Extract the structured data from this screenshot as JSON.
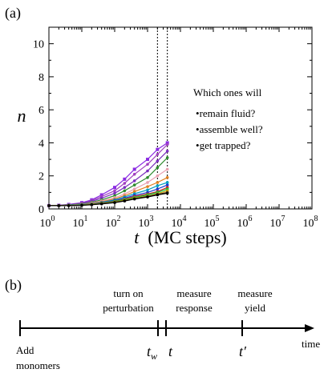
{
  "panel_a_label": "(a)",
  "panel_b_label": "(b)",
  "annotation": {
    "heading": "Which ones will",
    "bullets": [
      "remain fluid?",
      "assemble well?",
      "get trapped?"
    ]
  },
  "timeline": {
    "events": [
      {
        "id": "add",
        "below": [
          "Add",
          "monomers"
        ]
      },
      {
        "id": "tw",
        "above": [
          "turn on",
          "perturbation"
        ],
        "symbol": "t_w"
      },
      {
        "id": "t",
        "above": [
          "measure",
          "response"
        ],
        "symbol": "t"
      },
      {
        "id": "tp",
        "above": [
          "measure",
          "yield"
        ],
        "symbol": "t′"
      }
    ],
    "axis_label": "time"
  },
  "chart_data": {
    "type": "line",
    "xlabel": "t  (MC steps)",
    "ylabel": "n",
    "xscale": "log",
    "xlim": [
      1,
      100000000
    ],
    "ylim": [
      0,
      11
    ],
    "yticks": [
      0,
      2,
      4,
      6,
      8,
      10
    ],
    "xtick_labels": [
      "10^0",
      "10^1",
      "10^2",
      "10^3",
      "10^4",
      "10^5",
      "10^6",
      "10^7",
      "10^8"
    ],
    "vlines": [
      2000,
      4000
    ],
    "grid": false,
    "x": [
      1,
      2,
      4,
      10,
      20,
      40,
      100,
      200,
      400,
      1000,
      2000,
      4000
    ],
    "series": [
      {
        "color": "#8a2be2",
        "marker": "square",
        "values": [
          0.2,
          0.22,
          0.27,
          0.38,
          0.55,
          0.85,
          1.3,
          1.8,
          2.4,
          3.0,
          3.6,
          4.0
        ]
      },
      {
        "color": "#a040c0",
        "marker": "circle",
        "values": [
          0.2,
          0.22,
          0.26,
          0.35,
          0.5,
          0.75,
          1.1,
          1.55,
          2.1,
          2.7,
          3.3,
          3.9
        ]
      },
      {
        "color": "#7b2fbe",
        "marker": "circle",
        "values": [
          0.2,
          0.21,
          0.25,
          0.33,
          0.45,
          0.65,
          0.95,
          1.3,
          1.7,
          2.3,
          2.9,
          3.5
        ]
      },
      {
        "color": "#2e8b2e",
        "marker": "circle",
        "values": [
          0.2,
          0.21,
          0.24,
          0.3,
          0.4,
          0.55,
          0.8,
          1.1,
          1.45,
          1.9,
          2.5,
          3.1
        ]
      },
      {
        "color": "#e8a0b0",
        "marker": "circle",
        "values": [
          0.2,
          0.21,
          0.23,
          0.28,
          0.36,
          0.48,
          0.68,
          0.9,
          1.2,
          1.6,
          2.0,
          2.4
        ]
      },
      {
        "color": "#e08020",
        "marker": "circle",
        "values": [
          0.2,
          0.2,
          0.22,
          0.27,
          0.33,
          0.43,
          0.6,
          0.8,
          1.05,
          1.35,
          1.6,
          1.9
        ]
      },
      {
        "color": "#00a0c0",
        "marker": "circle",
        "values": [
          0.2,
          0.2,
          0.22,
          0.26,
          0.31,
          0.4,
          0.55,
          0.72,
          0.92,
          1.15,
          1.4,
          1.6
        ]
      },
      {
        "color": "#1a3ad0",
        "marker": "circle",
        "values": [
          0.2,
          0.2,
          0.21,
          0.25,
          0.3,
          0.38,
          0.5,
          0.65,
          0.82,
          1.0,
          1.2,
          1.45
        ]
      },
      {
        "color": "#d02020",
        "marker": "circle",
        "values": [
          0.2,
          0.2,
          0.21,
          0.24,
          0.29,
          0.36,
          0.47,
          0.6,
          0.75,
          0.9,
          1.05,
          1.3
        ]
      },
      {
        "color": "#10c040",
        "marker": "circle",
        "values": [
          0.2,
          0.2,
          0.21,
          0.24,
          0.28,
          0.35,
          0.45,
          0.57,
          0.7,
          0.85,
          1.0,
          1.2
        ]
      },
      {
        "color": "#c0a000",
        "marker": "circle",
        "values": [
          0.2,
          0.2,
          0.21,
          0.23,
          0.27,
          0.33,
          0.42,
          0.53,
          0.65,
          0.78,
          0.92,
          1.1
        ]
      },
      {
        "color": "#5a3a1a",
        "marker": "circle",
        "values": [
          0.2,
          0.2,
          0.2,
          0.23,
          0.26,
          0.32,
          0.4,
          0.5,
          0.62,
          0.75,
          0.88,
          1.0
        ]
      },
      {
        "color": "#000000",
        "marker": "circle",
        "values": [
          0.2,
          0.2,
          0.2,
          0.22,
          0.25,
          0.3,
          0.38,
          0.48,
          0.6,
          0.72,
          0.85,
          0.95
        ]
      }
    ]
  }
}
